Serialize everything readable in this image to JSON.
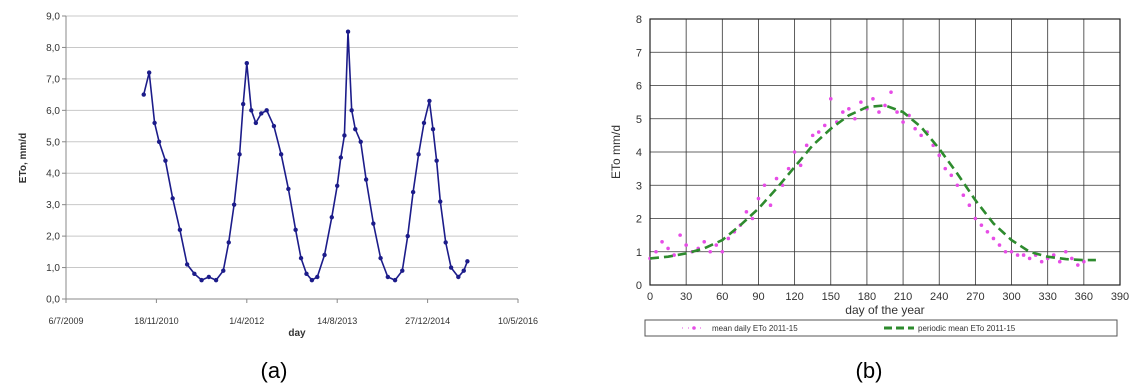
{
  "captions": {
    "a": "(a)",
    "b": "(b)"
  },
  "chart_data": [
    {
      "type": "line",
      "panel": "a",
      "title": "",
      "xlabel": "day",
      "ylabel": "ETo, mm/d",
      "x_tick_labels": [
        "6/7/2009",
        "18/11/2010",
        "1/4/2012",
        "14/8/2013",
        "27/12/2014",
        "10/5/2016"
      ],
      "y_tick_labels": [
        "0,0",
        "1,0",
        "2,0",
        "3,0",
        "4,0",
        "5,0",
        "6,0",
        "7,0",
        "8,0",
        "9,0"
      ],
      "ylim": [
        0,
        9
      ],
      "colors": {
        "series": "#1c1c8a"
      },
      "series": [
        {
          "x": [
            0.86,
            0.92,
            0.98,
            1.03,
            1.1,
            1.18,
            1.26,
            1.34,
            1.42,
            1.5,
            1.58,
            1.66,
            1.74,
            1.8,
            1.86,
            1.92,
            1.96,
            2.0,
            2.05,
            2.1,
            2.16,
            2.22,
            2.3,
            2.38,
            2.46,
            2.54,
            2.6,
            2.66,
            2.72,
            2.78,
            2.86,
            2.94,
            3.0,
            3.04,
            3.08,
            3.12,
            3.16,
            3.2,
            3.26,
            3.32,
            3.4,
            3.48,
            3.56,
            3.64,
            3.72,
            3.78,
            3.84,
            3.9,
            3.96,
            4.02,
            4.06,
            4.1,
            4.14,
            4.2,
            4.26,
            4.34,
            4.4,
            4.44
          ],
          "y": [
            6.5,
            7.2,
            5.6,
            5.0,
            4.4,
            3.2,
            2.2,
            1.1,
            0.8,
            0.6,
            0.7,
            0.6,
            0.9,
            1.8,
            3.0,
            4.6,
            6.2,
            7.5,
            6.0,
            5.6,
            5.9,
            6.0,
            5.5,
            4.6,
            3.5,
            2.2,
            1.3,
            0.8,
            0.6,
            0.7,
            1.4,
            2.6,
            3.6,
            4.5,
            5.2,
            8.5,
            6.0,
            5.4,
            5.0,
            3.8,
            2.4,
            1.3,
            0.7,
            0.6,
            0.9,
            2.0,
            3.4,
            4.6,
            5.6,
            6.3,
            5.4,
            4.4,
            3.1,
            1.8,
            1.0,
            0.7,
            0.9,
            1.2
          ]
        }
      ]
    },
    {
      "type": "scatter",
      "panel": "b",
      "title": "",
      "xlabel": "day of the year",
      "ylabel": "ETo mm/d",
      "xlim": [
        0,
        390
      ],
      "ylim": [
        0,
        8
      ],
      "x_ticks": [
        0,
        30,
        60,
        90,
        120,
        150,
        180,
        210,
        240,
        270,
        300,
        330,
        360,
        390
      ],
      "y_ticks": [
        0,
        1,
        2,
        3,
        4,
        5,
        6,
        7,
        8
      ],
      "colors": {
        "daily": "#e64ce6",
        "periodic": "#2e8b2e"
      },
      "legend_position": "bottom",
      "series": [
        {
          "name": "mean daily ETo 2011-15",
          "style": "points",
          "x": [
            0,
            5,
            10,
            15,
            20,
            25,
            30,
            35,
            40,
            45,
            50,
            55,
            60,
            65,
            70,
            75,
            80,
            85,
            90,
            95,
            100,
            105,
            110,
            115,
            120,
            125,
            130,
            135,
            140,
            145,
            150,
            155,
            160,
            165,
            170,
            175,
            180,
            185,
            190,
            195,
            200,
            205,
            210,
            215,
            220,
            225,
            230,
            235,
            240,
            245,
            250,
            255,
            260,
            265,
            270,
            275,
            280,
            285,
            290,
            295,
            300,
            305,
            310,
            315,
            320,
            325,
            330,
            335,
            340,
            345,
            350,
            355,
            360
          ],
          "y": [
            0.8,
            1.0,
            1.3,
            1.1,
            0.9,
            1.5,
            1.2,
            1.0,
            1.1,
            1.3,
            1.0,
            1.2,
            1.0,
            1.4,
            1.6,
            1.8,
            2.2,
            2.0,
            2.6,
            3.0,
            2.4,
            3.2,
            3.0,
            3.5,
            4.0,
            3.6,
            4.2,
            4.5,
            4.6,
            4.8,
            5.6,
            4.9,
            5.2,
            5.3,
            5.0,
            5.5,
            5.3,
            5.6,
            5.2,
            5.4,
            5.8,
            5.2,
            4.9,
            5.1,
            4.7,
            4.5,
            4.6,
            4.2,
            3.9,
            3.5,
            3.3,
            3.0,
            2.7,
            2.4,
            2.0,
            1.8,
            1.6,
            1.4,
            1.2,
            1.0,
            1.0,
            0.9,
            0.9,
            0.8,
            0.9,
            0.7,
            0.8,
            0.9,
            0.7,
            1.0,
            0.8,
            0.6,
            0.7
          ]
        },
        {
          "name": "periodic mean ETo 2011-15",
          "style": "dashed-line",
          "x": [
            0,
            15,
            30,
            45,
            60,
            75,
            90,
            105,
            120,
            135,
            150,
            165,
            180,
            195,
            210,
            225,
            240,
            255,
            270,
            285,
            300,
            315,
            330,
            345,
            360,
            370
          ],
          "y": [
            0.8,
            0.85,
            0.95,
            1.1,
            1.35,
            1.8,
            2.3,
            2.9,
            3.55,
            4.2,
            4.7,
            5.1,
            5.35,
            5.4,
            5.2,
            4.75,
            4.1,
            3.35,
            2.55,
            1.85,
            1.35,
            1.0,
            0.85,
            0.78,
            0.75,
            0.75
          ]
        }
      ]
    }
  ]
}
